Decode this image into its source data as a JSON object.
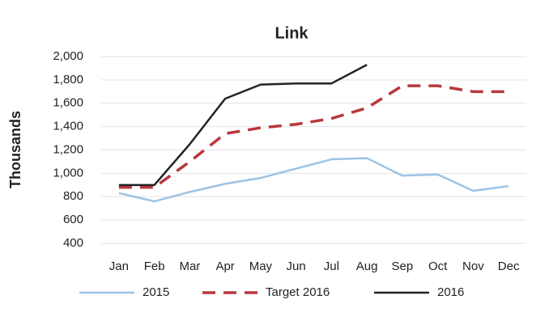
{
  "chart_data": {
    "type": "line",
    "title": "Link",
    "y_label": "Thousands",
    "categories": [
      "Jan",
      "Feb",
      "Mar",
      "Apr",
      "May",
      "Jun",
      "Jul",
      "Aug",
      "Sep",
      "Oct",
      "Nov",
      "Dec"
    ],
    "series": [
      {
        "name": "2015",
        "color": "#9dc3e6",
        "dash": false,
        "values": [
          830,
          760,
          840,
          910,
          960,
          1040,
          1120,
          1130,
          980,
          990,
          850,
          890
        ]
      },
      {
        "name": "Target 2016",
        "color": "#b8373c",
        "dash": true,
        "values": [
          880,
          880,
          1100,
          1340,
          1390,
          1420,
          1470,
          1560,
          1750,
          1750,
          1700,
          1700
        ]
      },
      {
        "name": "2016",
        "color": "#222222",
        "dash": false,
        "values": [
          900,
          900,
          1250,
          1640,
          1760,
          1770,
          1770,
          1930,
          null,
          null,
          null,
          null
        ]
      }
    ],
    "ylim": [
      400,
      2000
    ],
    "yticks": [
      400,
      600,
      800,
      {
        "value": 1000,
        "label": "1,000"
      },
      {
        "value": 1200,
        "label": "1,200"
      },
      {
        "value": 1400,
        "label": "1,400"
      },
      {
        "value": 1600,
        "label": "1,600"
      },
      {
        "value": 1800,
        "label": "1,800"
      },
      {
        "value": 2000,
        "label": "2,000"
      }
    ],
    "grid": true
  }
}
